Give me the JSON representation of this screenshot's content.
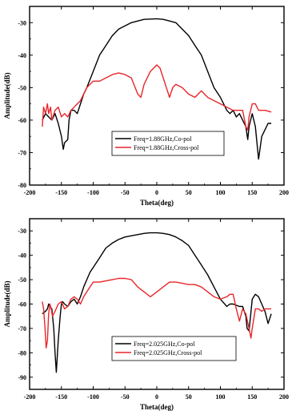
{
  "chart_data": [
    {
      "type": "line",
      "xlabel": "Theta(deg)",
      "ylabel": "Amplitude(dB)",
      "xlim": [
        -200,
        200
      ],
      "ylim": [
        -80,
        -25
      ],
      "xticks": [
        -200,
        -150,
        -100,
        -50,
        0,
        50,
        100,
        150,
        200
      ],
      "yticks": [
        -80,
        -70,
        -60,
        -50,
        -40,
        -30
      ],
      "grid": false,
      "legend_position": "bottom-center",
      "series": [
        {
          "name": "Freq=1.88GHz,Co-pol",
          "color": "#000000",
          "x": [
            -180,
            -175,
            -170,
            -165,
            -160,
            -155,
            -150,
            -147,
            -145,
            -140,
            -138,
            -135,
            -130,
            -125,
            -120,
            -115,
            -110,
            -100,
            -90,
            -80,
            -70,
            -60,
            -50,
            -40,
            -30,
            -20,
            -10,
            0,
            10,
            20,
            30,
            40,
            50,
            60,
            70,
            80,
            90,
            100,
            110,
            115,
            120,
            125,
            130,
            135,
            140,
            143,
            145,
            150,
            155,
            160,
            165,
            170,
            175,
            180
          ],
          "y": [
            -60,
            -58,
            -59,
            -60,
            -58,
            -61,
            -65,
            -69,
            -67,
            -66,
            -60,
            -57,
            -57,
            -58,
            -55,
            -52,
            -50,
            -45,
            -40,
            -37,
            -34,
            -32,
            -31,
            -30,
            -29.5,
            -29,
            -28.9,
            -28.8,
            -29,
            -29.5,
            -30,
            -32,
            -34,
            -37,
            -40,
            -45,
            -50,
            -53,
            -57,
            -58,
            -57,
            -59,
            -58,
            -60,
            -62,
            -66,
            -62,
            -58,
            -62,
            -72,
            -65,
            -63,
            -61,
            -61
          ]
        },
        {
          "name": "Freq=1.88GHz,Cross-pol",
          "color": "#e8262a",
          "x": [
            -180,
            -178,
            -175,
            -172,
            -170,
            -167,
            -165,
            -160,
            -155,
            -150,
            -145,
            -140,
            -135,
            -130,
            -125,
            -120,
            -110,
            -100,
            -90,
            -80,
            -70,
            -60,
            -50,
            -40,
            -30,
            -25,
            -20,
            -10,
            0,
            5,
            10,
            20,
            25,
            30,
            40,
            50,
            60,
            70,
            80,
            90,
            100,
            110,
            120,
            130,
            135,
            140,
            143,
            145,
            150,
            155,
            160,
            165,
            170,
            180
          ],
          "y": [
            -62,
            -56,
            -58,
            -55,
            -58,
            -56,
            -60,
            -57,
            -56,
            -59,
            -58,
            -59,
            -57,
            -56,
            -55,
            -54,
            -50,
            -48,
            -48,
            -47,
            -46,
            -45.5,
            -46,
            -47,
            -52,
            -53,
            -49,
            -45,
            -43,
            -44,
            -47,
            -53,
            -50,
            -49,
            -50,
            -52,
            -53,
            -51,
            -53,
            -54,
            -55,
            -56,
            -57,
            -57,
            -57,
            -62,
            -63,
            -59,
            -55,
            -55,
            -57,
            -57,
            -57,
            -57.5
          ]
        }
      ]
    },
    {
      "type": "line",
      "xlabel": "Theta(deg)",
      "ylabel": "Amplitude(dB)",
      "xlim": [
        -200,
        200
      ],
      "ylim": [
        -95,
        -25
      ],
      "xticks": [
        -200,
        -150,
        -100,
        -50,
        0,
        50,
        100,
        150,
        200
      ],
      "yticks": [
        -90,
        -80,
        -70,
        -60,
        -50,
        -40,
        -30
      ],
      "grid": false,
      "legend_position": "bottom-center",
      "series": [
        {
          "name": "Freq=2.025GHz,Co-pol",
          "color": "#000000",
          "x": [
            -180,
            -175,
            -172,
            -170,
            -168,
            -165,
            -162,
            -160,
            -158,
            -155,
            -152,
            -150,
            -148,
            -145,
            -140,
            -135,
            -130,
            -125,
            -120,
            -115,
            -110,
            -105,
            -100,
            -90,
            -80,
            -70,
            -60,
            -50,
            -40,
            -30,
            -20,
            -10,
            0,
            10,
            20,
            30,
            40,
            50,
            60,
            70,
            80,
            90,
            100,
            110,
            115,
            120,
            125,
            130,
            135,
            140,
            142,
            145,
            150,
            155,
            160,
            165,
            170,
            175,
            180
          ],
          "y": [
            -64,
            -63,
            -62,
            -60,
            -61,
            -62,
            -70,
            -80,
            -88,
            -75,
            -65,
            -60,
            -59,
            -60,
            -61,
            -59,
            -58,
            -60,
            -57,
            -53,
            -50,
            -47,
            -45,
            -41,
            -37,
            -35,
            -33.5,
            -32.5,
            -32,
            -31.5,
            -31,
            -30.8,
            -30.8,
            -31,
            -31.5,
            -32.5,
            -34,
            -36,
            -40,
            -44,
            -48,
            -53,
            -58,
            -61,
            -60,
            -60,
            -60.5,
            -61,
            -61,
            -65,
            -70,
            -71,
            -58,
            -56,
            -57,
            -60,
            -63,
            -68,
            -64
          ]
        },
        {
          "name": "Freq=2.025GHz,Cross-pol",
          "color": "#e8262a",
          "x": [
            -180,
            -178,
            -176,
            -174,
            -172,
            -170,
            -168,
            -166,
            -164,
            -160,
            -155,
            -150,
            -145,
            -140,
            -135,
            -130,
            -125,
            -120,
            -115,
            -110,
            -100,
            -90,
            -80,
            -70,
            -60,
            -50,
            -40,
            -30,
            -20,
            -10,
            0,
            10,
            20,
            30,
            40,
            50,
            60,
            70,
            80,
            90,
            100,
            110,
            115,
            120,
            125,
            130,
            135,
            140,
            145,
            148,
            150,
            155,
            160,
            165,
            170,
            175,
            180
          ],
          "y": [
            -59,
            -62,
            -69,
            -78,
            -75,
            -64,
            -60,
            -62,
            -65,
            -63,
            -60,
            -59,
            -62,
            -61,
            -58,
            -57,
            -58,
            -60,
            -57,
            -55,
            -51,
            -51,
            -50.5,
            -50,
            -49.5,
            -49.5,
            -50,
            -53,
            -55,
            -57,
            -55,
            -53,
            -51,
            -51,
            -51.5,
            -52,
            -52,
            -53,
            -55,
            -57,
            -58,
            -57,
            -56,
            -56,
            -62,
            -67,
            -62,
            -64,
            -70,
            -74,
            -70,
            -62,
            -62,
            -63,
            -62,
            -62,
            -62
          ]
        }
      ]
    }
  ]
}
